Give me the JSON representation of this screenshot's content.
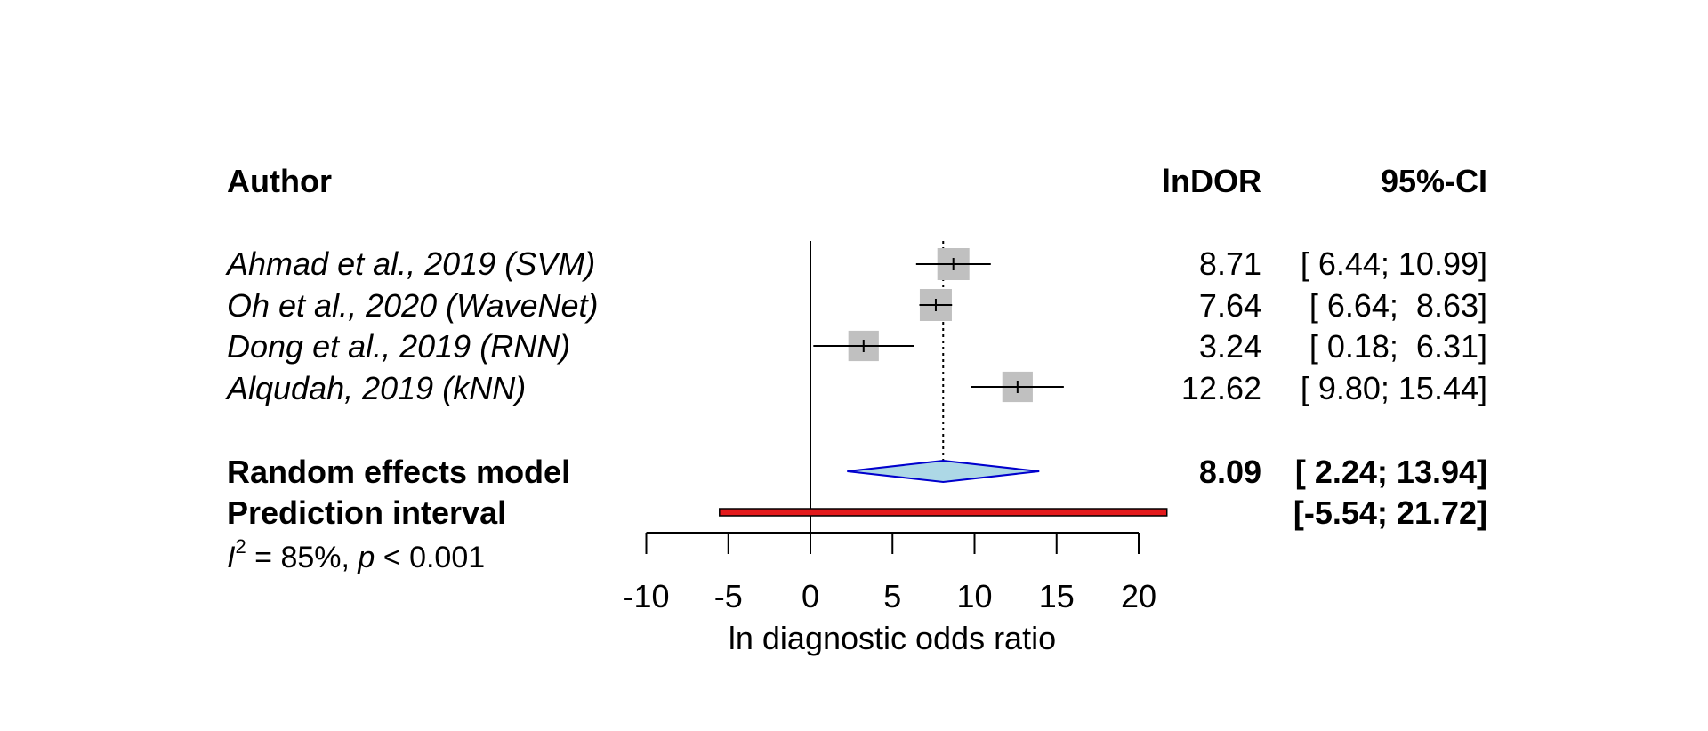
{
  "chart_data": {
    "type": "forest",
    "headers": {
      "author": "Author",
      "estimate": "lnDOR",
      "ci": "95%-CI"
    },
    "studies": [
      {
        "author": "Ahmad et al., 2019 (SVM)",
        "estimate": 8.71,
        "lower": 6.44,
        "upper": 10.99,
        "estimate_label": "8.71",
        "ci_label": "[ 6.44; 10.99]",
        "weight_box": 1.0
      },
      {
        "author": "Oh et al., 2020 (WaveNet)",
        "estimate": 7.64,
        "lower": 6.64,
        "upper": 8.63,
        "estimate_label": "7.64",
        "ci_label": "[ 6.64;  8.63]",
        "weight_box": 1.0
      },
      {
        "author": "Dong et al., 2019 (RNN)",
        "estimate": 3.24,
        "lower": 0.18,
        "upper": 6.31,
        "estimate_label": "3.24",
        "ci_label": "[ 0.18;  6.31]",
        "weight_box": 0.95
      },
      {
        "author": "Alqudah, 2019 (kNN)",
        "estimate": 12.62,
        "lower": 9.8,
        "upper": 15.44,
        "estimate_label": "12.62",
        "ci_label": "[ 9.80; 15.44]",
        "weight_box": 0.95
      }
    ],
    "random_effects": {
      "label": "Random effects model",
      "estimate": 8.09,
      "lower": 2.24,
      "upper": 13.94,
      "estimate_label": "8.09",
      "ci_label": "[ 2.24; 13.94]"
    },
    "prediction_interval": {
      "label": "Prediction interval",
      "lower": -5.54,
      "upper": 21.72,
      "ci_label": "[-5.54; 21.72]"
    },
    "heterogeneity": {
      "i_symbol": "I",
      "superscript": "2",
      "rest_before_p": " = 85%, ",
      "p_symbol": "p",
      "rest_after_p": " < 0.001"
    },
    "x_axis": {
      "label": "ln diagnostic odds ratio",
      "ticks": [
        -10,
        -5,
        0,
        5,
        10,
        15,
        20
      ],
      "tick_labels": [
        "-10",
        "-5",
        "0",
        "5",
        "10",
        "15",
        "20"
      ],
      "range": [
        -10,
        20
      ]
    },
    "null_line": 0,
    "colors": {
      "study_box": "#c0c0c0",
      "diamond_fill": "#add8e6",
      "diamond_stroke": "#0000cd",
      "prediction_fill": "#e31a1c",
      "line": "#000000"
    }
  }
}
